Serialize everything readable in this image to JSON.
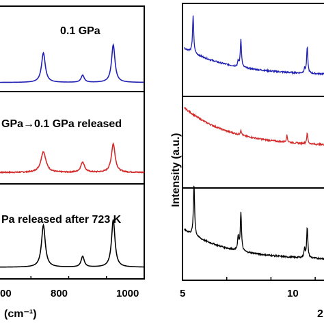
{
  "chart_data": [
    {
      "type": "line",
      "title": "",
      "xlabel": "(cm⁻¹)",
      "ylabel": "",
      "xlim": [
        600,
        1000
      ],
      "x_ticks": [
        "00",
        "800",
        "1000"
      ],
      "grid": false,
      "panels": [
        {
          "label": "0.1 GPa",
          "color": "#1f1fb4",
          "baseline": 0.08,
          "peaks": [
            {
              "x": 733,
              "height": 0.37,
              "width": 6
            },
            {
              "x": 837,
              "height": 0.09,
              "width": 5
            },
            {
              "x": 918,
              "height": 0.47,
              "width": 5.5
            }
          ],
          "noise": false
        },
        {
          "label": "GPa→0.1 GPa released",
          "color": "#d42a2a",
          "baseline": 0.1,
          "peaks": [
            {
              "x": 733,
              "height": 0.24,
              "width": 8
            },
            {
              "x": 837,
              "height": 0.12,
              "width": 6
            },
            {
              "x": 918,
              "height": 0.33,
              "width": 6
            }
          ],
          "noise": true
        },
        {
          "label": "Pa released after 723 K",
          "color": "#000000",
          "baseline": 0.1,
          "peaks": [
            {
              "x": 733,
              "height": 0.47,
              "width": 6
            },
            {
              "x": 837,
              "height": 0.12,
              "width": 5
            },
            {
              "x": 918,
              "height": 0.53,
              "width": 5.5
            }
          ],
          "noise": false
        }
      ]
    },
    {
      "type": "line",
      "title": "",
      "xlabel": "2",
      "ylabel": "Intensity (a.u.)",
      "xlim": [
        5,
        13.5
      ],
      "x_ticks": [
        "5",
        "10"
      ],
      "grid": false,
      "panels": [
        {
          "color": "#1f1fb4",
          "start": 0.52,
          "end": 0.21,
          "peaks": [
            {
              "x": 5.6,
              "height": 0.42
            },
            {
              "x": 8.15,
              "height": 0.06
            },
            {
              "x": 8.3,
              "height": 0.32
            },
            {
              "x": 11.9,
              "height": 0.05
            },
            {
              "x": 12.05,
              "height": 0.3
            }
          ]
        },
        {
          "color": "#d42a2a",
          "start": 0.9,
          "end": 0.45,
          "peaks": [
            {
              "x": 8.3,
              "height": 0.06
            },
            {
              "x": 10.9,
              "height": 0.08
            },
            {
              "x": 12.05,
              "height": 0.12
            }
          ]
        },
        {
          "color": "#000000",
          "start": 0.55,
          "end": 0.2,
          "peaks": [
            {
              "x": 5.65,
              "height": 0.6
            },
            {
              "x": 8.15,
              "height": 0.16
            },
            {
              "x": 8.3,
              "height": 0.45
            },
            {
              "x": 11.9,
              "height": 0.1
            },
            {
              "x": 12.05,
              "height": 0.35
            }
          ]
        }
      ]
    }
  ]
}
